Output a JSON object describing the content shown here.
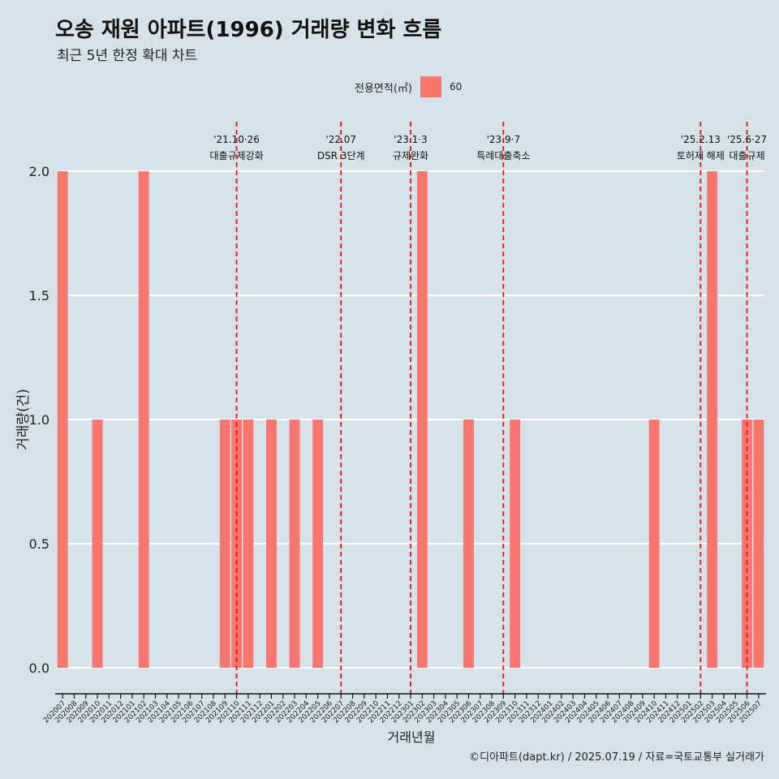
{
  "title": "오송 재원 아파트(1996) 거래량 변화 흐름",
  "subtitle": "최근 5년 한정 확대 차트",
  "legend": {
    "title": "전용면적(㎡)",
    "entries": [
      {
        "label": "60",
        "color": "#f8766d"
      }
    ],
    "position": "top"
  },
  "caption": "©디아파트(dapt.kr) / 2025.07.19 / 자료=국토교통부 실거래가",
  "chart_data": {
    "type": "bar",
    "title": "오송 재원 아파트(1996) 거래량 변화 흐름",
    "subtitle": "최근 5년 한정 확대 차트",
    "xlabel": "거래년월",
    "ylabel": "거래량(건)",
    "ylim": [
      0,
      2
    ],
    "yticks": [
      "0.0",
      "0.5",
      "1.0",
      "1.5",
      "2.0"
    ],
    "grid": "horizontal",
    "bar_color": "#f8766d",
    "categories": [
      "202007",
      "202008",
      "202009",
      "202010",
      "202011",
      "202012",
      "202101",
      "202102",
      "202103",
      "202104",
      "202105",
      "202106",
      "202107",
      "202108",
      "202109",
      "202110",
      "202111",
      "202112",
      "202201",
      "202202",
      "202203",
      "202204",
      "202205",
      "202206",
      "202207",
      "202208",
      "202209",
      "202210",
      "202211",
      "202212",
      "202301",
      "202302",
      "202303",
      "202304",
      "202305",
      "202306",
      "202307",
      "202308",
      "202309",
      "202310",
      "202311",
      "202312",
      "202401",
      "202402",
      "202403",
      "202404",
      "202405",
      "202406",
      "202407",
      "202408",
      "202409",
      "202410",
      "202411",
      "202412",
      "202501",
      "202502",
      "202503",
      "202504",
      "202505",
      "202506",
      "202507"
    ],
    "series": [
      {
        "name": "60",
        "values": [
          2,
          0,
          0,
          1,
          0,
          0,
          0,
          2,
          0,
          0,
          0,
          0,
          0,
          0,
          1,
          1,
          1,
          0,
          1,
          0,
          1,
          0,
          1,
          0,
          0,
          0,
          0,
          0,
          0,
          0,
          0,
          2,
          0,
          0,
          0,
          1,
          0,
          0,
          0,
          1,
          0,
          0,
          0,
          0,
          0,
          0,
          0,
          0,
          0,
          0,
          0,
          1,
          0,
          0,
          0,
          0,
          2,
          0,
          0,
          1,
          1
        ]
      }
    ],
    "annotations": [
      {
        "x": 15.5,
        "date": "'21.10·26",
        "label": "대출규제강화"
      },
      {
        "x": 24.5,
        "date": "'22.07",
        "label": "DSR 3단계"
      },
      {
        "x": 30.5,
        "date": "'23.1·3",
        "label": "규제완화"
      },
      {
        "x": 38.5,
        "date": "'23.9·7",
        "label": "특례대출축소"
      },
      {
        "x": 55.5,
        "date": "'25.2.13",
        "label": "토허제 해제"
      },
      {
        "x": 59.5,
        "date": "'25.6·27",
        "label": "대출규제"
      }
    ]
  }
}
